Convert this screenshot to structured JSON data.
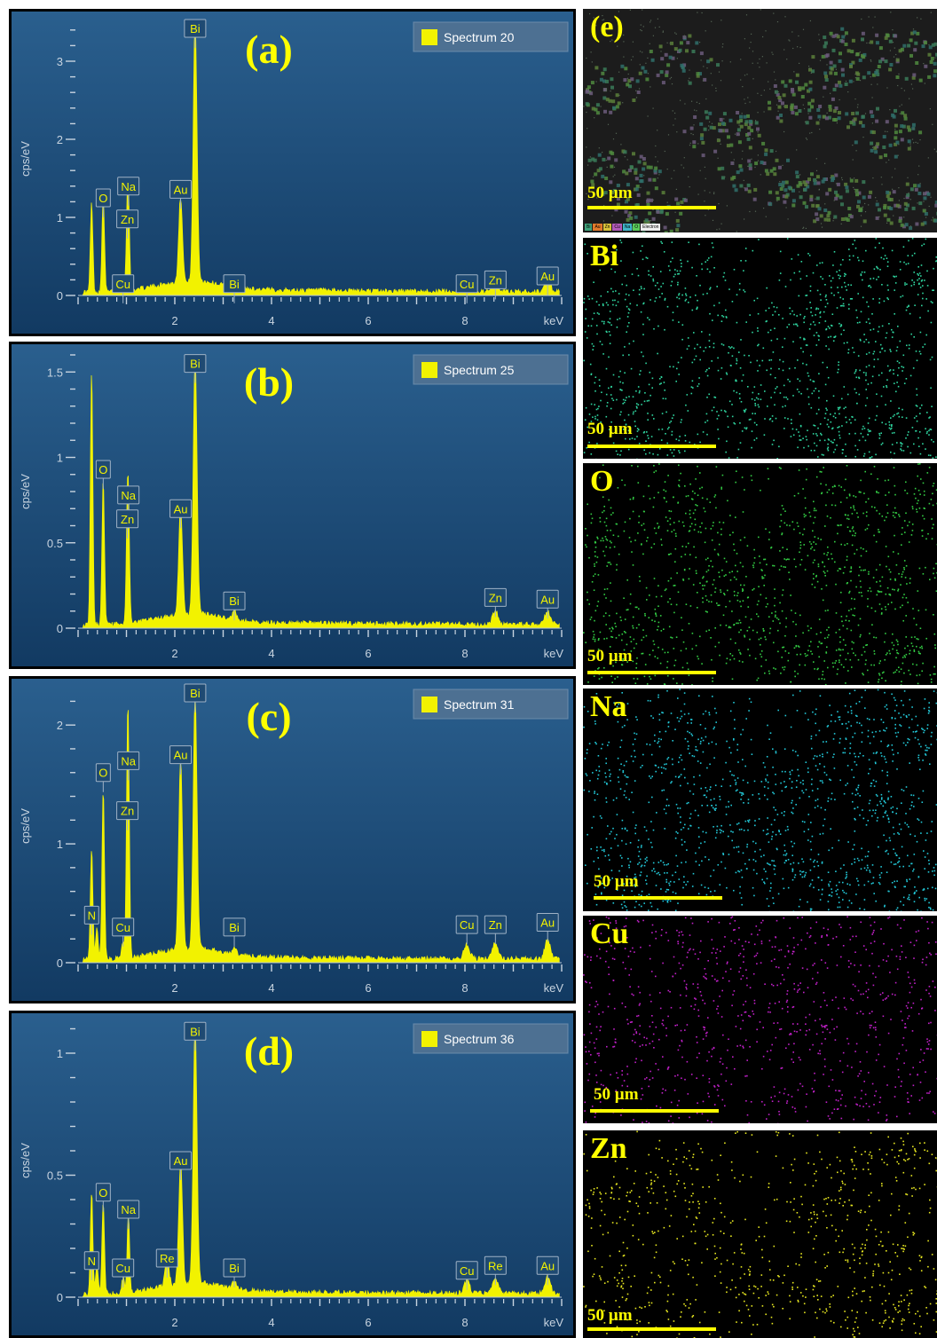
{
  "spectra": [
    {
      "label": "(a)",
      "legend": "Spectrum 20"
    },
    {
      "label": "(b)",
      "legend": "Spectrum 25"
    },
    {
      "label": "(c)",
      "legend": "Spectrum 31"
    },
    {
      "label": "(d)",
      "legend": "Spectrum 36"
    }
  ],
  "maps": {
    "composite": {
      "label": "(e)",
      "scale": "50 µm",
      "legend": [
        "Bi",
        "Au",
        "Zn",
        "Cu",
        "Na",
        "O",
        "Electron"
      ]
    },
    "tiles": [
      {
        "label": "Bi",
        "scale": "50 µm",
        "color": "#2fd6a0"
      },
      {
        "label": "O",
        "scale": "50 µm",
        "color": "#33cc44"
      },
      {
        "label": "Na",
        "scale": "50 µm",
        "color": "#22c8d8"
      },
      {
        "label": "Cu",
        "scale": "50 µm",
        "color": "#c020c8"
      },
      {
        "label": "Zn",
        "scale": "50 µm",
        "color": "#e8e820"
      }
    ]
  },
  "chart_data": [
    {
      "type": "line",
      "panel": "(a)",
      "series": [
        {
          "name": "Spectrum 20"
        }
      ],
      "xlabel": "keV",
      "ylabel": "cps/eV",
      "xlim": [
        0,
        10
      ],
      "ylim": [
        0,
        3.5
      ],
      "yticks": [
        0,
        1,
        2,
        3
      ],
      "xticks": [
        2,
        4,
        6,
        8
      ],
      "peaks": [
        {
          "x": 0.28,
          "y": 1.15
        },
        {
          "x": 0.52,
          "y": 1.25
        },
        {
          "x": 0.93,
          "y": 0.15
        },
        {
          "x": 1.02,
          "y": 0.8
        },
        {
          "x": 1.04,
          "y": 0.85
        },
        {
          "x": 2.12,
          "y": 1.1
        },
        {
          "x": 2.42,
          "y": 3.3
        },
        {
          "x": 3.23,
          "y": 0.05
        },
        {
          "x": 8.04,
          "y": 0.1
        },
        {
          "x": 8.63,
          "y": 0.12
        },
        {
          "x": 9.71,
          "y": 0.15
        }
      ],
      "annotations": [
        {
          "text": "O",
          "x": 0.52,
          "y": 1.25
        },
        {
          "text": "Na",
          "x": 1.04,
          "y": 1.4
        },
        {
          "text": "Zn",
          "x": 1.02,
          "y": 0.98
        },
        {
          "text": "Cu",
          "x": 0.93,
          "y": 0.15
        },
        {
          "text": "Au",
          "x": 2.12,
          "y": 1.36
        },
        {
          "text": "Bi",
          "x": 2.42,
          "y": 3.42
        },
        {
          "text": "Bi",
          "x": 3.23,
          "y": 0.15
        },
        {
          "text": "Cu",
          "x": 8.04,
          "y": 0.15
        },
        {
          "text": "Zn",
          "x": 8.63,
          "y": 0.2
        },
        {
          "text": "Au",
          "x": 9.71,
          "y": 0.25
        }
      ]
    },
    {
      "type": "line",
      "panel": "(b)",
      "series": [
        {
          "name": "Spectrum 25"
        }
      ],
      "xlabel": "keV",
      "ylabel": "cps/eV",
      "xlim": [
        0,
        10
      ],
      "ylim": [
        0,
        1.6
      ],
      "yticks": [
        0,
        0.5,
        1,
        1.5
      ],
      "xticks": [
        2,
        4,
        6,
        8
      ],
      "peaks": [
        {
          "x": 0.28,
          "y": 1.5
        },
        {
          "x": 0.52,
          "y": 0.85
        },
        {
          "x": 1.02,
          "y": 0.48
        },
        {
          "x": 1.04,
          "y": 0.5
        },
        {
          "x": 2.12,
          "y": 0.63
        },
        {
          "x": 2.42,
          "y": 1.5
        },
        {
          "x": 3.23,
          "y": 0.06
        },
        {
          "x": 8.63,
          "y": 0.08
        },
        {
          "x": 9.71,
          "y": 0.08
        }
      ],
      "annotations": [
        {
          "text": "O",
          "x": 0.52,
          "y": 0.93
        },
        {
          "text": "Na",
          "x": 1.04,
          "y": 0.78
        },
        {
          "text": "Zn",
          "x": 1.02,
          "y": 0.64
        },
        {
          "text": "Au",
          "x": 2.12,
          "y": 0.7
        },
        {
          "text": "Bi",
          "x": 2.42,
          "y": 1.55
        },
        {
          "text": "Bi",
          "x": 3.23,
          "y": 0.16
        },
        {
          "text": "Zn",
          "x": 8.63,
          "y": 0.18
        },
        {
          "text": "Au",
          "x": 9.71,
          "y": 0.17
        }
      ]
    },
    {
      "type": "line",
      "panel": "(c)",
      "series": [
        {
          "name": "Spectrum 31"
        }
      ],
      "xlabel": "keV",
      "ylabel": "cps/eV",
      "xlim": [
        0,
        10
      ],
      "ylim": [
        0,
        2.3
      ],
      "yticks": [
        0,
        1,
        2
      ],
      "xticks": [
        2,
        4,
        6,
        8
      ],
      "peaks": [
        {
          "x": 0.28,
          "y": 0.92
        },
        {
          "x": 0.39,
          "y": 0.25
        },
        {
          "x": 0.52,
          "y": 1.45
        },
        {
          "x": 0.93,
          "y": 0.15
        },
        {
          "x": 1.02,
          "y": 1.15
        },
        {
          "x": 1.04,
          "y": 1.2
        },
        {
          "x": 2.12,
          "y": 1.6
        },
        {
          "x": 2.42,
          "y": 2.12
        },
        {
          "x": 3.23,
          "y": 0.06
        },
        {
          "x": 8.04,
          "y": 0.12
        },
        {
          "x": 8.63,
          "y": 0.14
        },
        {
          "x": 9.71,
          "y": 0.16
        }
      ],
      "annotations": [
        {
          "text": "N",
          "x": 0.28,
          "y": 0.4
        },
        {
          "text": "O",
          "x": 0.52,
          "y": 1.6
        },
        {
          "text": "Na",
          "x": 1.04,
          "y": 1.7
        },
        {
          "text": "Zn",
          "x": 1.02,
          "y": 1.28
        },
        {
          "text": "Cu",
          "x": 0.93,
          "y": 0.3
        },
        {
          "text": "Au",
          "x": 2.12,
          "y": 1.75
        },
        {
          "text": "Bi",
          "x": 2.42,
          "y": 2.27
        },
        {
          "text": "Bi",
          "x": 3.23,
          "y": 0.3
        },
        {
          "text": "Cu",
          "x": 8.04,
          "y": 0.32
        },
        {
          "text": "Zn",
          "x": 8.63,
          "y": 0.32
        },
        {
          "text": "Au",
          "x": 9.71,
          "y": 0.34
        }
      ]
    },
    {
      "type": "line",
      "panel": "(d)",
      "series": [
        {
          "name": "Spectrum 36"
        }
      ],
      "xlabel": "keV",
      "ylabel": "cps/eV",
      "xlim": [
        0,
        10
      ],
      "ylim": [
        0,
        1.12
      ],
      "yticks": [
        0,
        0.5,
        1
      ],
      "xticks": [
        2,
        4,
        6,
        8
      ],
      "peaks": [
        {
          "x": 0.28,
          "y": 0.42
        },
        {
          "x": 0.39,
          "y": 0.12
        },
        {
          "x": 0.52,
          "y": 0.38
        },
        {
          "x": 0.93,
          "y": 0.06
        },
        {
          "x": 1.04,
          "y": 0.32
        },
        {
          "x": 1.84,
          "y": 0.12
        },
        {
          "x": 2.12,
          "y": 0.5
        },
        {
          "x": 2.42,
          "y": 1.05
        },
        {
          "x": 3.23,
          "y": 0.03
        },
        {
          "x": 8.04,
          "y": 0.05
        },
        {
          "x": 8.63,
          "y": 0.06
        },
        {
          "x": 9.71,
          "y": 0.07
        }
      ],
      "annotations": [
        {
          "text": "N",
          "x": 0.28,
          "y": 0.15
        },
        {
          "text": "O",
          "x": 0.52,
          "y": 0.43
        },
        {
          "text": "Na",
          "x": 1.04,
          "y": 0.36
        },
        {
          "text": "Cu",
          "x": 0.93,
          "y": 0.12
        },
        {
          "text": "Re",
          "x": 1.84,
          "y": 0.16
        },
        {
          "text": "Au",
          "x": 2.12,
          "y": 0.56
        },
        {
          "text": "Bi",
          "x": 2.42,
          "y": 1.09
        },
        {
          "text": "Bi",
          "x": 3.23,
          "y": 0.12
        },
        {
          "text": "Cu",
          "x": 8.04,
          "y": 0.11
        },
        {
          "text": "Re",
          "x": 8.63,
          "y": 0.13
        },
        {
          "text": "Au",
          "x": 9.71,
          "y": 0.13
        }
      ]
    }
  ]
}
